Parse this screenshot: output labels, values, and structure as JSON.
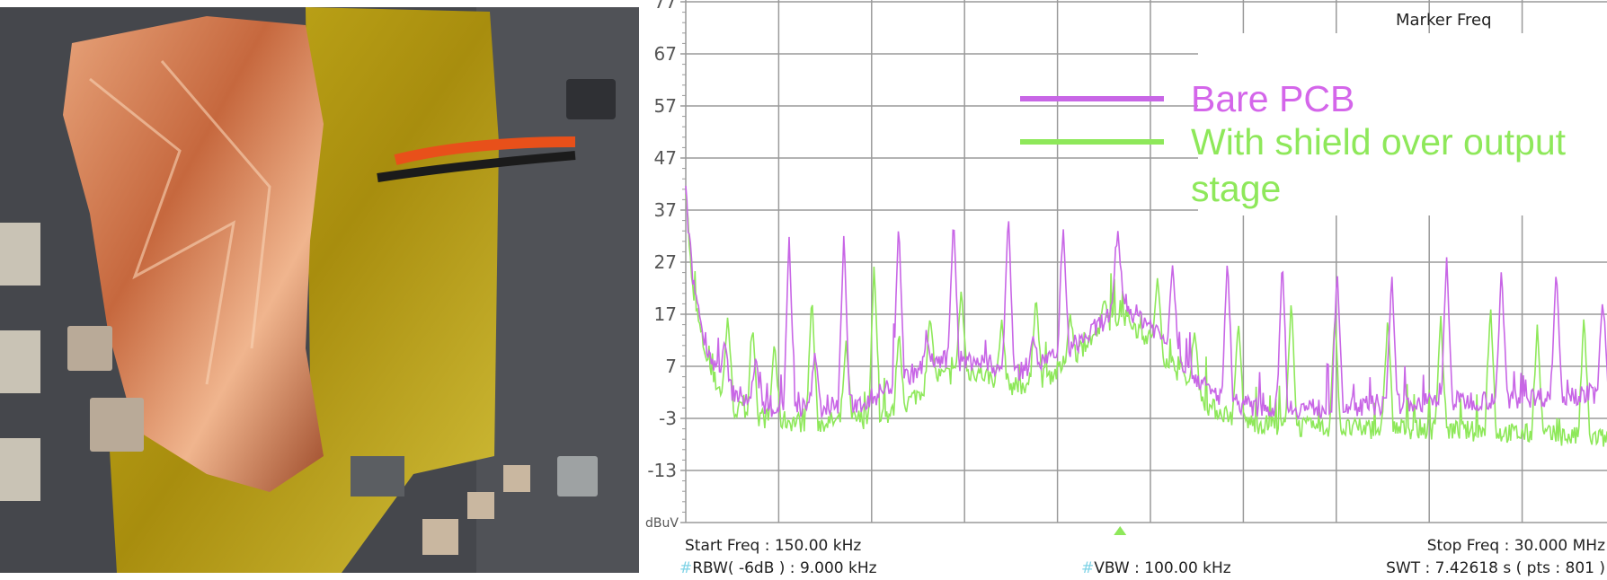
{
  "photo": {
    "description_icon": "pcb-photo"
  },
  "marker_header": "Marker Freq",
  "footer": {
    "start_freq": "Start Freq : 150.00 kHz",
    "stop_freq": "Stop Freq : 30.000 MHz",
    "rbw_hash": "#",
    "rbw": "RBW( -6dB ) : 9.000 kHz",
    "vbw_hash": "#",
    "vbw": "VBW : 100.00 kHz",
    "swt": "SWT : 7.42618 s ( pts : 801 )"
  },
  "chart_data": {
    "type": "line",
    "ylabel": "dBuV",
    "xlim_mhz": [
      0.15,
      30.0
    ],
    "ylim": [
      -23,
      77
    ],
    "yticks": [
      77,
      67,
      57,
      47,
      37,
      27,
      17,
      7,
      -3,
      -13
    ],
    "x_divisions": 10,
    "grid": true,
    "legend_placement": "top-right",
    "marker_freq_mhz": 14.1,
    "series": [
      {
        "name": "Bare PCB",
        "color": "#c866e6",
        "floor": [
          [
            0.15,
            40
          ],
          [
            0.35,
            25
          ],
          [
            0.68,
            14
          ],
          [
            1.0,
            8
          ],
          [
            1.66,
            2
          ],
          [
            2.64,
            -1
          ],
          [
            4.28,
            -1
          ],
          [
            5.91,
            0
          ],
          [
            6.9,
            4
          ],
          [
            8.2,
            8
          ],
          [
            9.5,
            8
          ],
          [
            10.8,
            6
          ],
          [
            12.1,
            9
          ],
          [
            13.1,
            13
          ],
          [
            14.1,
            19
          ],
          [
            15.1,
            15
          ],
          [
            16.1,
            8
          ],
          [
            17.0,
            2
          ],
          [
            18.4,
            -1
          ],
          [
            20.6,
            -1
          ],
          [
            23.9,
            0
          ],
          [
            27.2,
            1
          ],
          [
            30.0,
            2
          ]
        ],
        "spurs": [
          [
            3.47,
            32
          ],
          [
            5.23,
            33
          ],
          [
            6.99,
            35
          ],
          [
            8.75,
            36
          ],
          [
            10.51,
            37
          ],
          [
            12.27,
            34
          ],
          [
            14.03,
            33
          ],
          [
            15.79,
            27
          ],
          [
            17.55,
            28
          ],
          [
            19.31,
            28
          ],
          [
            21.07,
            26
          ],
          [
            22.83,
            25
          ],
          [
            24.59,
            28
          ],
          [
            26.35,
            26
          ],
          [
            28.11,
            26
          ],
          [
            29.6,
            20
          ],
          [
            1.4,
            12
          ],
          [
            2.4,
            9
          ],
          [
            4.3,
            10
          ],
          [
            7.9,
            12
          ],
          [
            11.3,
            13
          ]
        ]
      },
      {
        "name": "With shield over output stage",
        "color": "#8ee85a",
        "floor": [
          [
            0.15,
            42
          ],
          [
            0.35,
            22
          ],
          [
            0.68,
            12
          ],
          [
            1.0,
            5
          ],
          [
            1.66,
            -1
          ],
          [
            2.64,
            -3
          ],
          [
            4.28,
            -4
          ],
          [
            5.91,
            -3
          ],
          [
            6.9,
            -2
          ],
          [
            8.2,
            5
          ],
          [
            9.5,
            6
          ],
          [
            10.8,
            3
          ],
          [
            12.1,
            6
          ],
          [
            13.1,
            12
          ],
          [
            14.1,
            17
          ],
          [
            15.1,
            12
          ],
          [
            16.1,
            5
          ],
          [
            17.0,
            -1
          ],
          [
            18.4,
            -4
          ],
          [
            20.6,
            -5
          ],
          [
            23.9,
            -5
          ],
          [
            27.2,
            -6
          ],
          [
            30.0,
            -7
          ]
        ],
        "spurs": [
          [
            1.5,
            17
          ],
          [
            2.3,
            15
          ],
          [
            3.0,
            12
          ],
          [
            4.2,
            21
          ],
          [
            5.3,
            12
          ],
          [
            6.2,
            27
          ],
          [
            7.0,
            14
          ],
          [
            8.0,
            17
          ],
          [
            9.0,
            22
          ],
          [
            10.3,
            16
          ],
          [
            11.4,
            21
          ],
          [
            12.5,
            17
          ],
          [
            13.6,
            20
          ],
          [
            15.3,
            24
          ],
          [
            16.5,
            14
          ],
          [
            17.9,
            16
          ],
          [
            19.6,
            20
          ],
          [
            21.0,
            17
          ],
          [
            22.7,
            17
          ],
          [
            24.4,
            17
          ],
          [
            26.0,
            19
          ],
          [
            27.5,
            15
          ],
          [
            29.0,
            17
          ]
        ]
      }
    ]
  }
}
